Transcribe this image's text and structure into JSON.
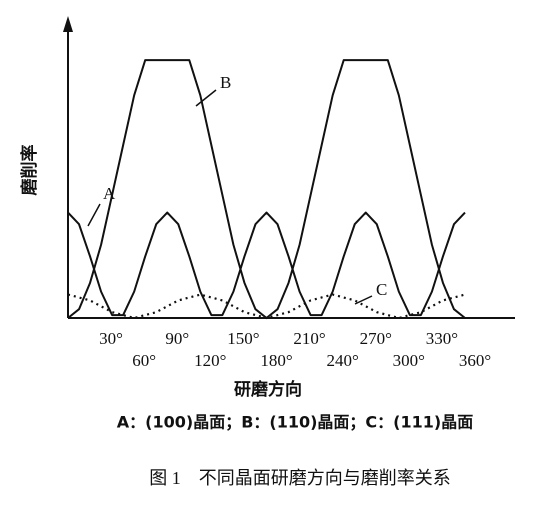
{
  "chart_data": {
    "type": "line",
    "y_label": "磨削率",
    "x_label": "研磨方向",
    "legend_text": "A：(100)晶面；B：(110)晶面；C：(111)晶面",
    "caption": "图 1　不同晶面研磨方向与磨削率关系",
    "annotations": [
      "A",
      "B",
      "C"
    ],
    "x": [
      0,
      10,
      20,
      30,
      40,
      50,
      60,
      70,
      80,
      90,
      100,
      110,
      120,
      130,
      140,
      150,
      160,
      170,
      180,
      190,
      200,
      210,
      220,
      230,
      240,
      250,
      260,
      270,
      280,
      290,
      300,
      310,
      320,
      330,
      340,
      350,
      360
    ],
    "xlim": [
      0,
      360
    ],
    "ylim": [
      0,
      1
    ],
    "xticks": [
      {
        "value": 30,
        "label": "30°"
      },
      {
        "value": 60,
        "label": "60°"
      },
      {
        "value": 90,
        "label": "90°"
      },
      {
        "value": 120,
        "label": "120°"
      },
      {
        "value": 150,
        "label": "150°"
      },
      {
        "value": 180,
        "label": "180°"
      },
      {
        "value": 210,
        "label": "210°"
      },
      {
        "value": 240,
        "label": "240°"
      },
      {
        "value": 270,
        "label": "270°"
      },
      {
        "value": 300,
        "label": "300°"
      },
      {
        "value": 330,
        "label": "330°"
      },
      {
        "value": 360,
        "label": "360°"
      }
    ],
    "series": [
      {
        "name": "A",
        "color": "#111111",
        "line_style": "solid",
        "values": [
          0.36,
          0.32,
          0.21,
          0.09,
          0.01,
          0.01,
          0.09,
          0.21,
          0.32,
          0.36,
          0.32,
          0.21,
          0.09,
          0.01,
          0.01,
          0.09,
          0.21,
          0.32,
          0.36,
          0.32,
          0.21,
          0.09,
          0.01,
          0.01,
          0.09,
          0.21,
          0.32,
          0.36,
          0.32,
          0.21,
          0.09,
          0.01,
          0.01,
          0.09,
          0.21,
          0.32,
          0.36
        ]
      },
      {
        "name": "B",
        "color": "#111111",
        "line_style": "solid",
        "values": [
          0,
          0.03,
          0.12,
          0.25,
          0.42,
          0.59,
          0.76,
          0.88,
          0.88,
          0.88,
          0.88,
          0.88,
          0.76,
          0.59,
          0.42,
          0.25,
          0.12,
          0.03,
          0,
          0.03,
          0.12,
          0.25,
          0.42,
          0.59,
          0.76,
          0.88,
          0.88,
          0.88,
          0.88,
          0.88,
          0.76,
          0.59,
          0.42,
          0.25,
          0.12,
          0.03,
          0
        ]
      },
      {
        "name": "C",
        "color": "#111111",
        "line_style": "dotted",
        "values": [
          0.08,
          0.07,
          0.06,
          0.04,
          0.02,
          0.01,
          0,
          0.01,
          0.02,
          0.04,
          0.06,
          0.07,
          0.08,
          0.07,
          0.06,
          0.04,
          0.02,
          0.01,
          0,
          0.01,
          0.02,
          0.04,
          0.06,
          0.07,
          0.08,
          0.07,
          0.06,
          0.04,
          0.02,
          0.01,
          0,
          0.01,
          0.02,
          0.04,
          0.06,
          0.07,
          0.08
        ]
      }
    ]
  }
}
